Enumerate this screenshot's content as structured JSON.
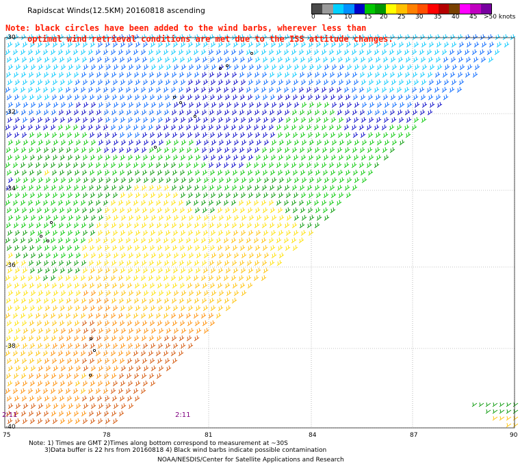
{
  "title": "Rapidscat Winds(12.5KM) 20160818 ascending",
  "note_lines": [
    "Note: black circles have been added to the wind barbs, wherever less than",
    "optimal wind retrieval conditions are met due to the ISS attitude changes."
  ],
  "color_scale": {
    "colors": [
      "#4a4a4a",
      "#9a9a9a",
      "#00d0ff",
      "#0090ff",
      "#0000c8",
      "#00c800",
      "#009600",
      "#ffff00",
      "#ffc000",
      "#ff8000",
      "#ff5000",
      "#ff0000",
      "#b40000",
      "#784000",
      "#ff00ff",
      "#c000c0",
      "#7800a0"
    ],
    "labels": [
      "0",
      "5",
      "10",
      "15",
      "20",
      "25",
      "30",
      "35",
      "40",
      "45",
      ">50 knots"
    ]
  },
  "lat_labels": [
    "-30",
    "-32",
    "-34",
    "-36",
    "-38",
    "-40"
  ],
  "lon_labels": [
    "75",
    "78",
    "81",
    "84",
    "87",
    "90"
  ],
  "time_labels": [
    "2:11",
    "2:11"
  ],
  "footnotes": [
    "Note: 1) Times are GMT 2)Times along bottom correspond to measurement at ~30S",
    "3)Data buffer is 22 hrs from 20160818 4) Black wind barbs indicate possible contamination"
  ],
  "credit": "NOAA/NESDIS/Center for Satellite Applications and Research"
}
